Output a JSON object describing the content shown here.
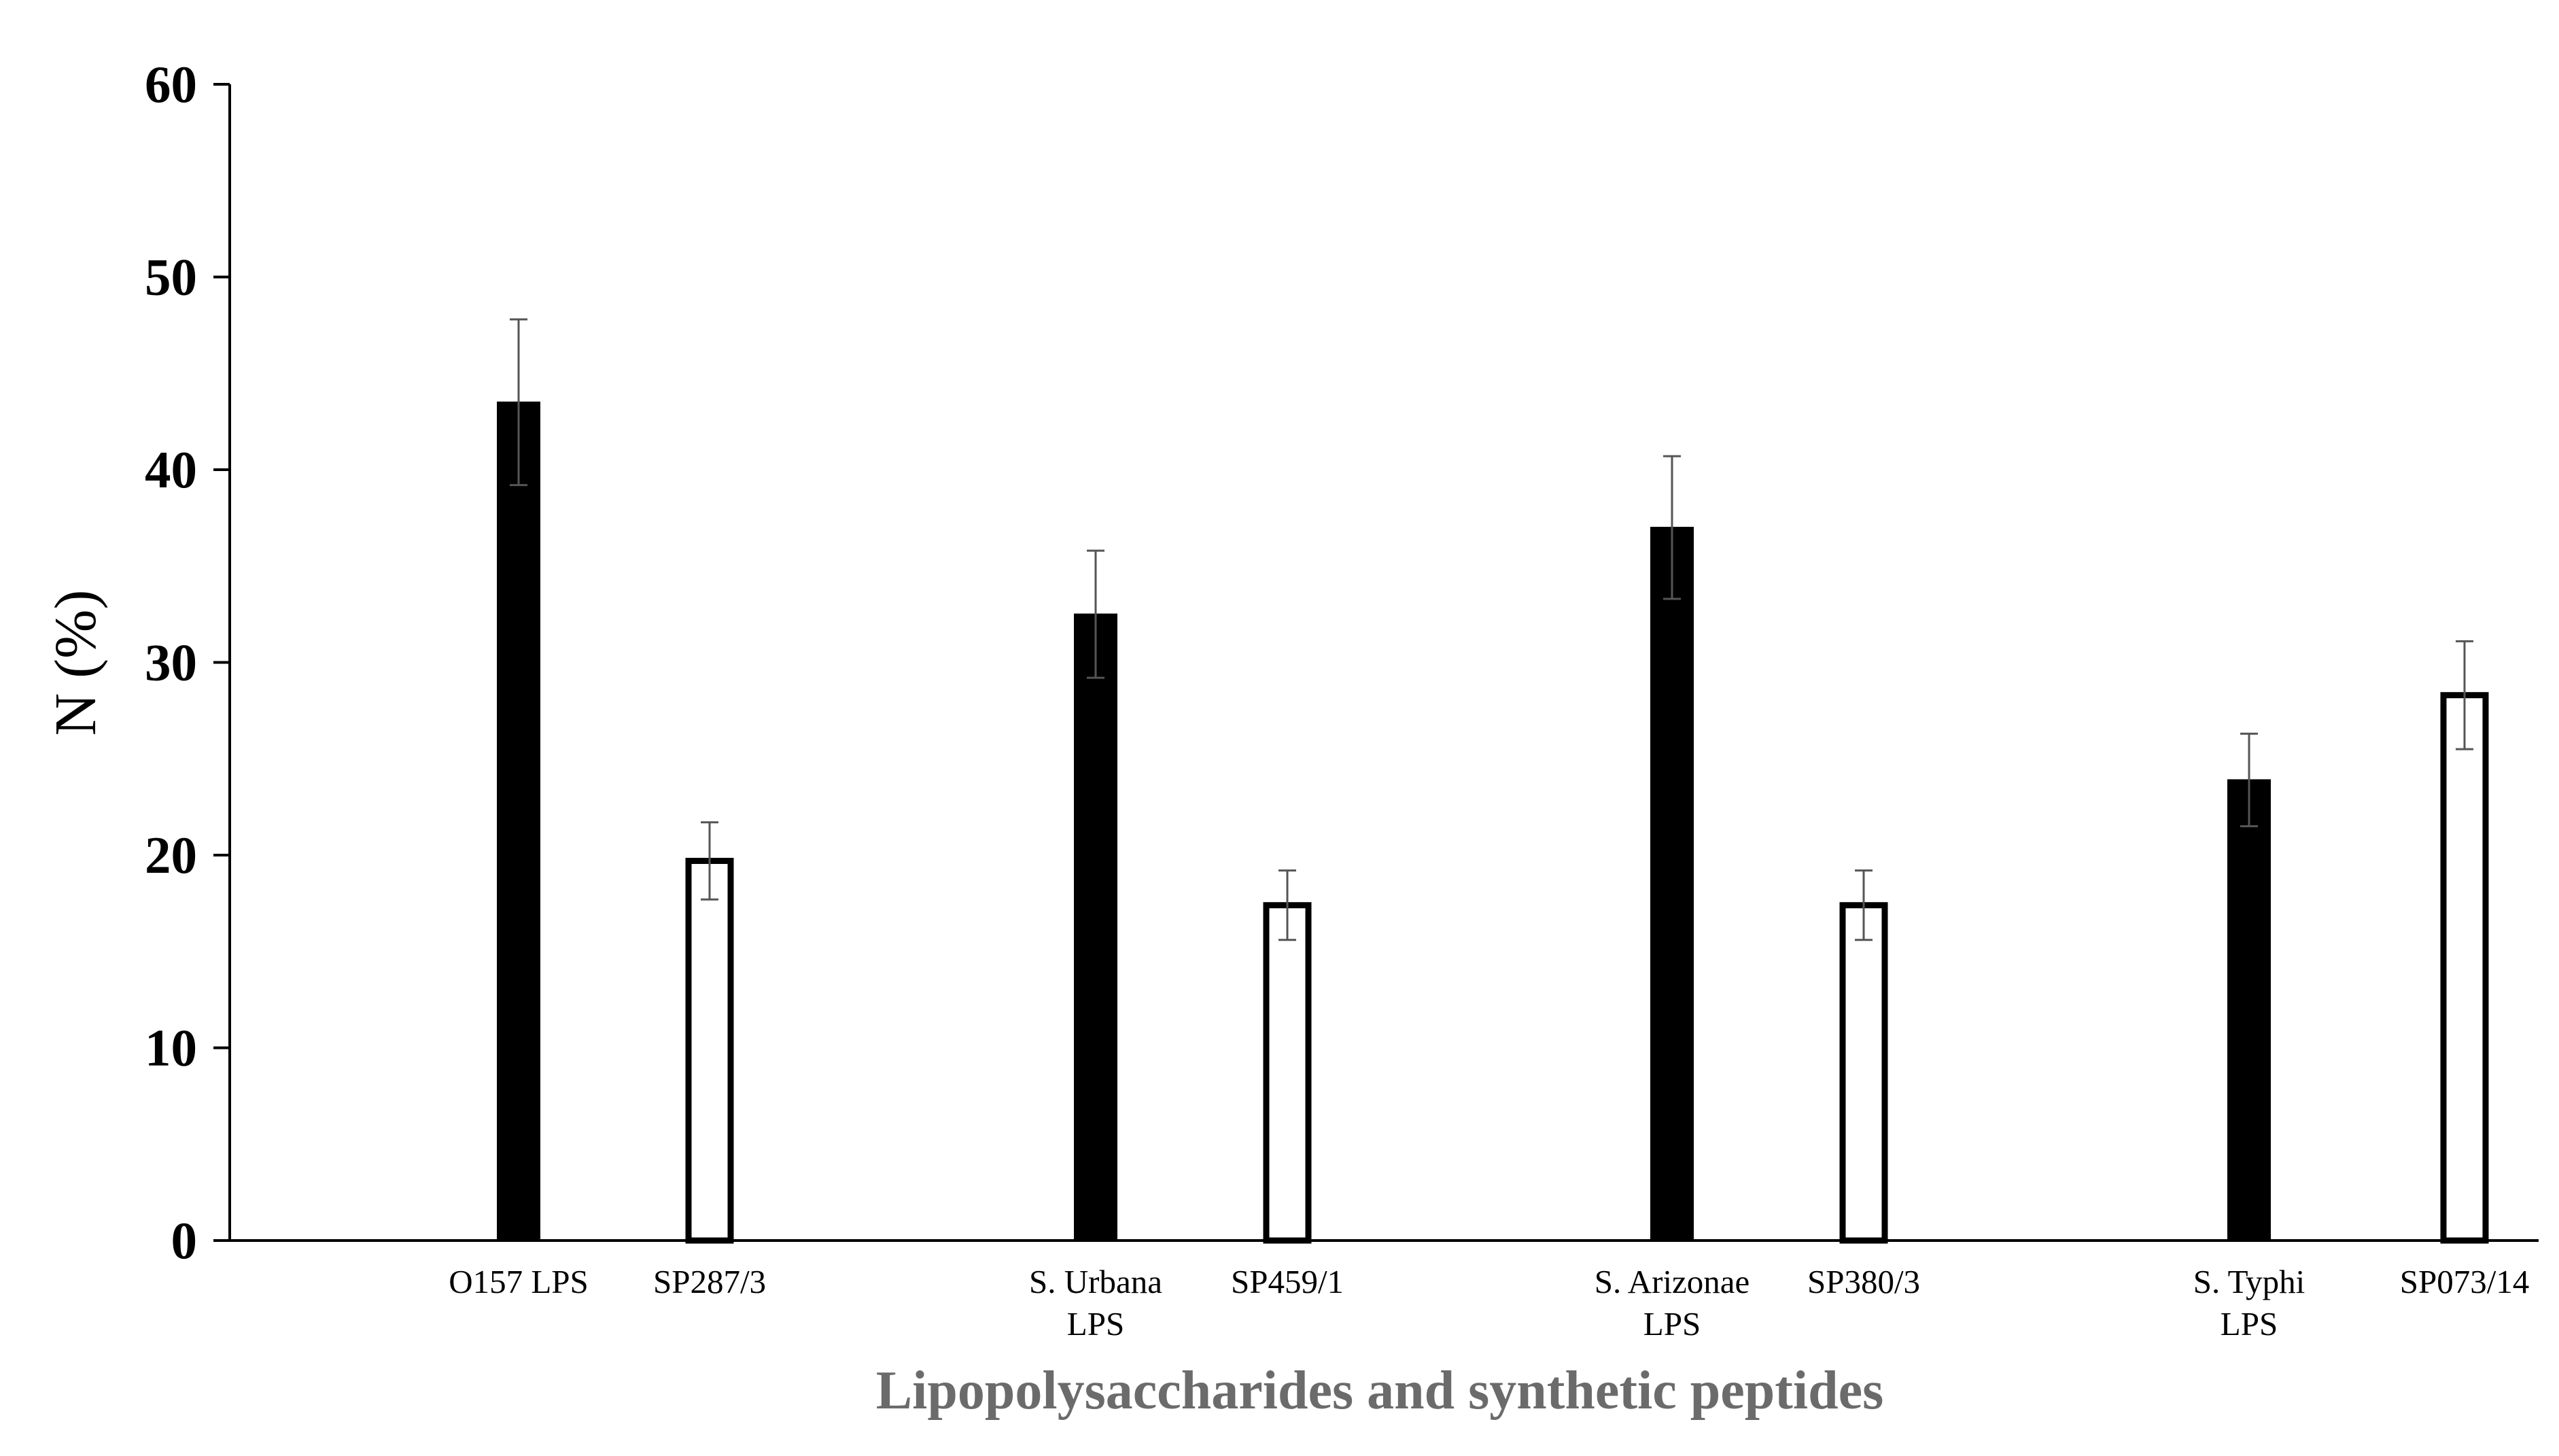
{
  "chart_data": {
    "type": "bar",
    "xlabel": "Lipopolysaccharides and synthetic peptides",
    "ylabel": "N (%)",
    "ylim": [
      0,
      60
    ],
    "yticks": [
      0,
      10,
      20,
      30,
      40,
      50,
      60
    ],
    "grid": false,
    "legend": "none",
    "colors": {
      "lps": "#000000",
      "peptide": "#ffffff",
      "outline": "#000000",
      "error_bar": "#555555"
    },
    "groups": [
      {
        "bars": [
          {
            "label": "O157 LPS",
            "value": 43.5,
            "error": 4.3,
            "kind": "lps"
          },
          {
            "label": "SP287/3",
            "value": 19.7,
            "error": 2.0,
            "kind": "peptide"
          }
        ]
      },
      {
        "bars": [
          {
            "label": "S. Urbana\nLPS",
            "value": 32.5,
            "error": 3.3,
            "kind": "lps"
          },
          {
            "label": "SP459/1",
            "value": 17.4,
            "error": 1.8,
            "kind": "peptide"
          }
        ]
      },
      {
        "bars": [
          {
            "label": "S. Arizonae\nLPS",
            "value": 37.0,
            "error": 3.7,
            "kind": "lps"
          },
          {
            "label": "SP380/3",
            "value": 17.4,
            "error": 1.8,
            "kind": "peptide"
          }
        ]
      },
      {
        "bars": [
          {
            "label": "S. Typhi\nLPS",
            "value": 23.9,
            "error": 2.4,
            "kind": "lps"
          },
          {
            "label": "SP073/14",
            "value": 28.3,
            "error": 2.8,
            "kind": "peptide"
          }
        ]
      }
    ]
  }
}
